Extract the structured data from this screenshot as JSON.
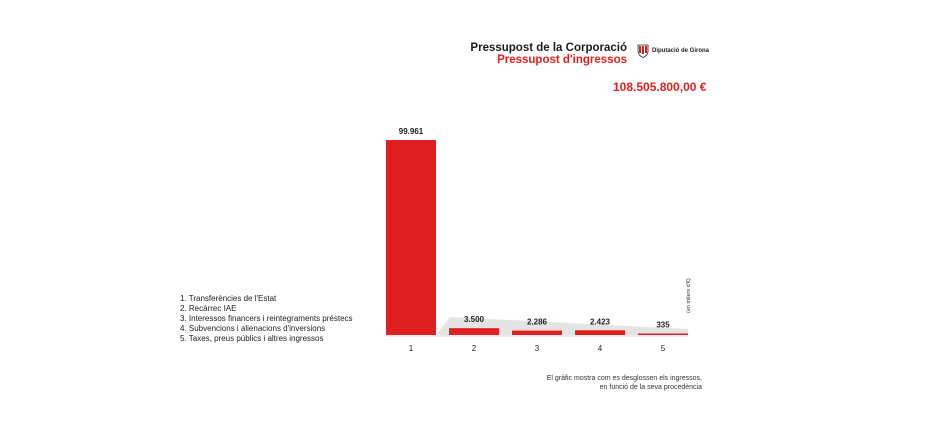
{
  "header": {
    "title": "Pressupost de la Corporació",
    "subtitle": "Pressupost d'ingressos",
    "organization": "Diputació de Girona",
    "total": "108.505.800,00 €"
  },
  "legend": [
    "1. Transferències de l'Estat",
    "2. Recàrrec IAE",
    "3. Interessos financers i reintegraments préstecs",
    "4. Subvencions i alienacions d'inversions",
    "5. Taxes, preus públics i altres ingressos"
  ],
  "note": {
    "line1": "El gràfic mostra com es desglossen els ingressos,",
    "line2": "en funció de la seva procedència"
  },
  "unit_label": "(en milers d'€)",
  "colors": {
    "bar": "#e02020",
    "shadow": "#e4e4e4",
    "accent": "#e02020"
  },
  "chart_data": {
    "type": "bar",
    "categories": [
      "1",
      "2",
      "3",
      "4",
      "5"
    ],
    "values": [
      99961,
      3500,
      2286,
      2423,
      335
    ],
    "value_labels": [
      "99.961",
      "3.500",
      "2.286",
      "2.423",
      "335"
    ],
    "ylim": [
      0,
      100000
    ],
    "grid": false,
    "legend_placement": "left"
  }
}
